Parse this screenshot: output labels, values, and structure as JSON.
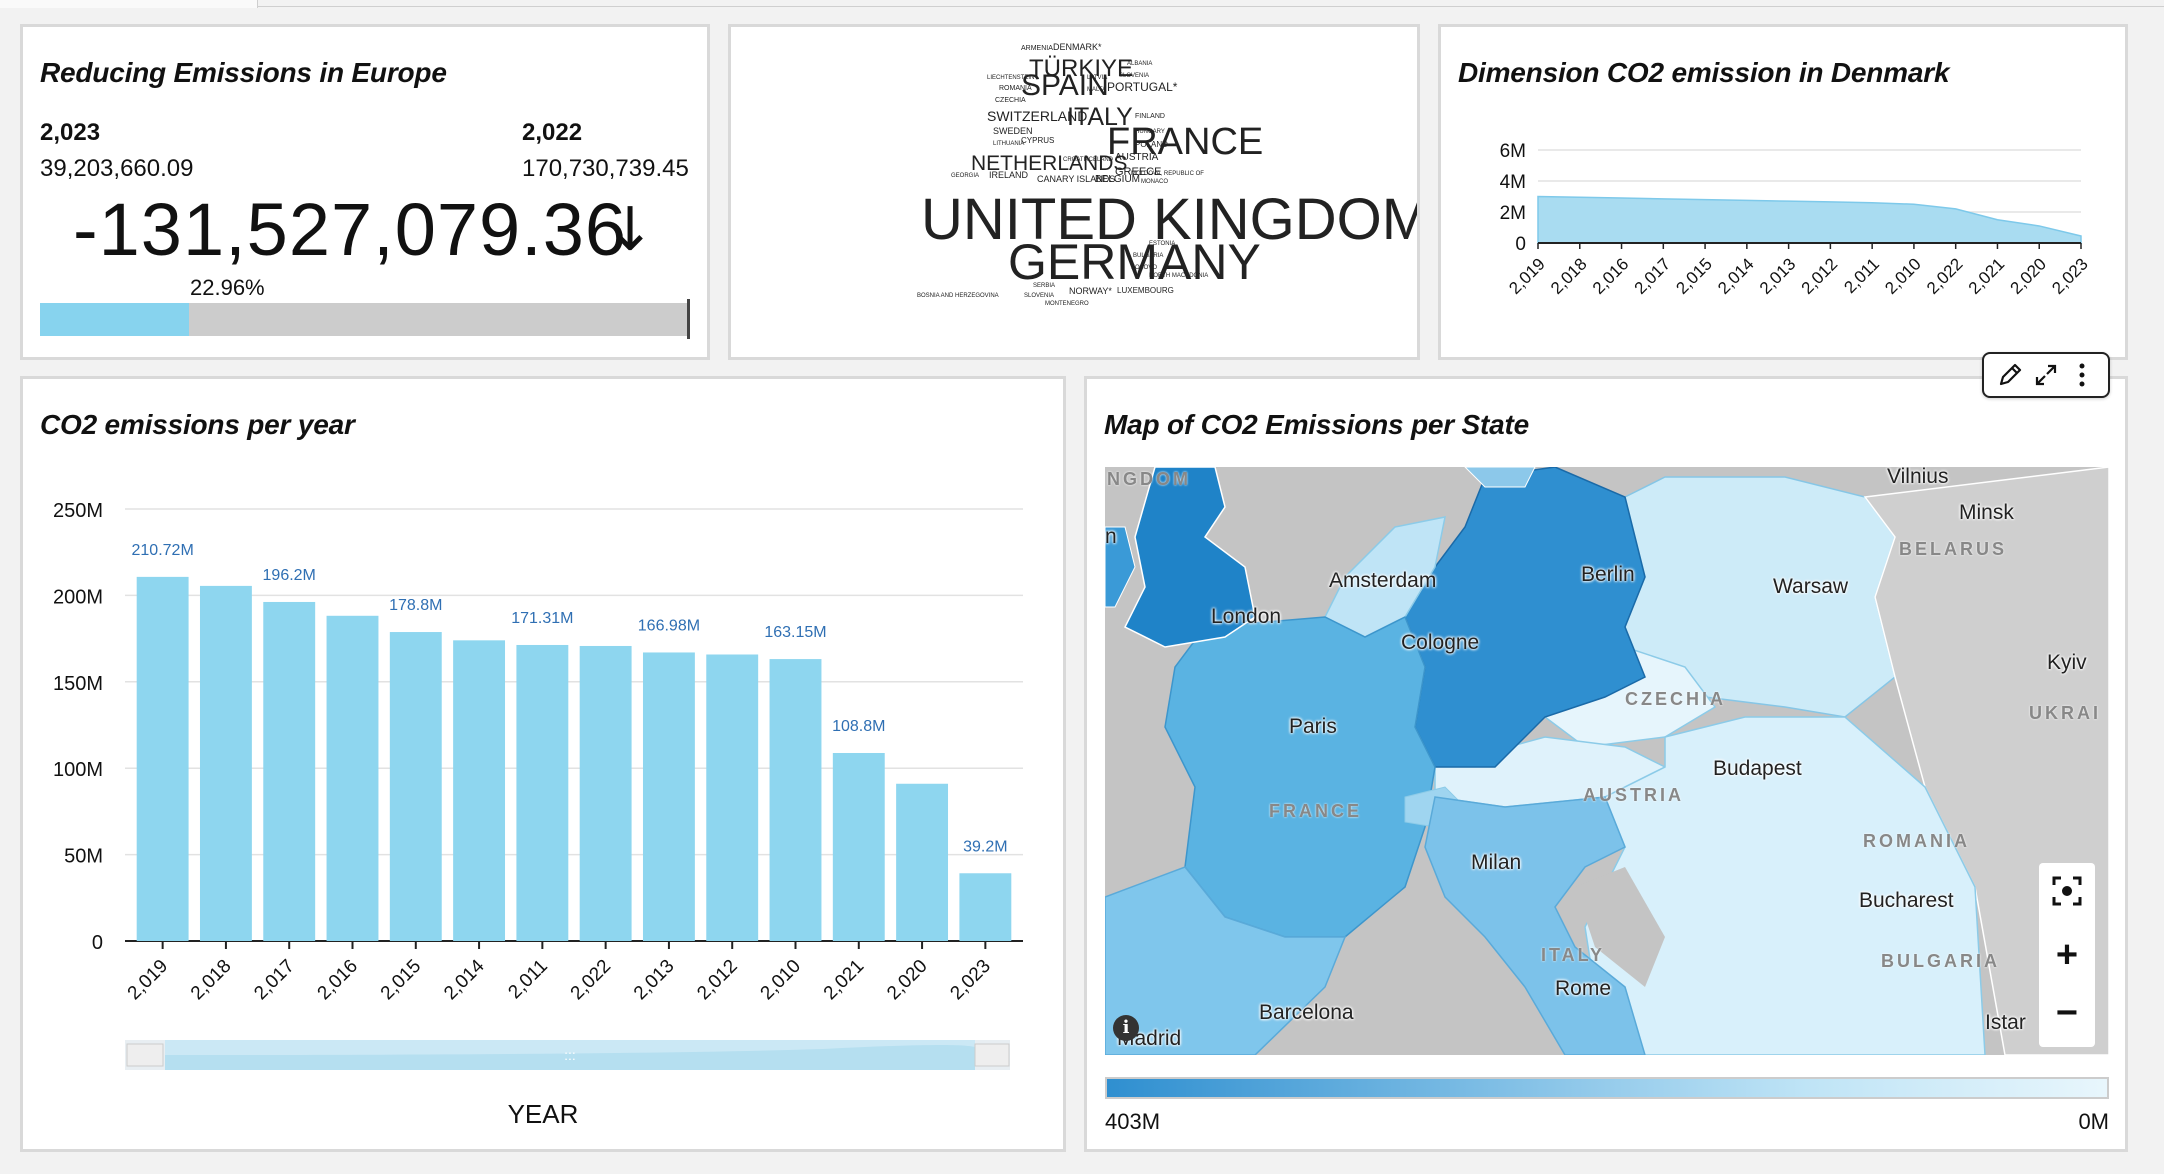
{
  "kpi": {
    "title": "Reducing Emissions in Europe",
    "left_label": "2,023",
    "left_value": "39,203,660.09",
    "right_label": "2,022",
    "right_value": "170,730,739.45",
    "difference": "-131,527,079.36",
    "arrow": "↓",
    "percent_label": "22.96%",
    "percent": 0.2296
  },
  "wordcloud": {
    "words": [
      "ARMENIA",
      "DENMARK*",
      "TÜRKIYE",
      "ALBANIA",
      "SLOVENIA",
      "LIECHTENSTEIN",
      "SPAIN",
      "LATVIA",
      "ROMANIA",
      "MALTA",
      "PORTUGAL*",
      "CZECHIA",
      "SWITZERLAND",
      "ITALY",
      "FINLAND",
      "SWEDEN",
      "HUNGARY",
      "LITHUANIA",
      "CYPRUS",
      "FRANCE",
      "POLAND",
      "CROATIA",
      "ICELAND",
      "AUSTRIA",
      "NETHERLANDS",
      "GREECE",
      "MOLDOVA, REPUBLIC OF",
      "GEORGIA",
      "IRELAND",
      "CANARY ISLANDS",
      "BELGIUM",
      "MONACO",
      "UNITED KINGDOM*",
      "ESTONIA",
      "GERMANY",
      "BULGARIA",
      "KOSOVO",
      "NORTH MACEDONIA",
      "SERBIA",
      "BOSNIA AND HERZEGOVINA",
      "SLOVENIA",
      "NORWAY*",
      "LUXEMBOURG",
      "MONTENEGRO"
    ]
  },
  "denmark": {
    "title": "Dimension CO2 emission in Denmark"
  },
  "bars": {
    "title": "CO2 emissions per year",
    "xlabel": "YEAR"
  },
  "map": {
    "title": "Map of CO2 Emissions per State",
    "cities": [
      "Vilnius",
      "Minsk",
      "Amsterdam",
      "London",
      "Berlin",
      "Warsaw",
      "Cologne",
      "Kyiv",
      "Paris",
      "Budapest",
      "Milan",
      "Bucharest",
      "Rome",
      "Barcelona",
      "Madrid",
      "Istar"
    ],
    "countries": [
      "NGDOM",
      "BELARUS",
      "CZECHIA",
      "UKRAI",
      "FRANCE",
      "AUSTRIA",
      "ROMANIA",
      "ITALY",
      "BULGARIA"
    ],
    "edge_label": "n",
    "legend_max": "403M",
    "legend_min": "0M",
    "colors": {
      "high": "#2f8fd0",
      "low": "#e8f6fc"
    }
  },
  "chart_data": [
    {
      "type": "bar",
      "title": "CO2 emissions per year",
      "xlabel": "YEAR",
      "ylabel": "",
      "categories": [
        "2,019",
        "2,018",
        "2,017",
        "2,016",
        "2,015",
        "2,014",
        "2,011",
        "2,022",
        "2,013",
        "2,012",
        "2,010",
        "2,021",
        "2,020",
        "2,023"
      ],
      "values": [
        210.72,
        205.5,
        196.2,
        188.2,
        178.8,
        174.0,
        171.31,
        170.73,
        166.98,
        165.8,
        163.15,
        108.8,
        91.0,
        39.2
      ],
      "data_labels": [
        "210.72M",
        "",
        "196.2M",
        "",
        "178.8M",
        "",
        "171.31M",
        "",
        "166.98M",
        "",
        "163.15M",
        "108.8M",
        "",
        "39.2M"
      ],
      "unit": "M",
      "ylim": [
        0,
        250
      ],
      "yticks": [
        "0",
        "50M",
        "100M",
        "150M",
        "200M",
        "250M"
      ],
      "grid": true,
      "color": "#8ed6ef"
    },
    {
      "type": "area",
      "title": "Dimension CO2 emission in Denmark",
      "categories": [
        "2,019",
        "2,018",
        "2,016",
        "2,017",
        "2,015",
        "2,014",
        "2,013",
        "2,012",
        "2,011",
        "2,010",
        "2,022",
        "2,021",
        "2,020",
        "2,023"
      ],
      "values": [
        3.0,
        2.95,
        2.9,
        2.85,
        2.8,
        2.75,
        2.7,
        2.65,
        2.6,
        2.5,
        2.2,
        1.5,
        1.1,
        0.45
      ],
      "unit": "M",
      "ylim": [
        0,
        6
      ],
      "yticks": [
        "0",
        "2M",
        "4M",
        "6M"
      ],
      "grid": true,
      "color": "#a9dcf1"
    }
  ]
}
